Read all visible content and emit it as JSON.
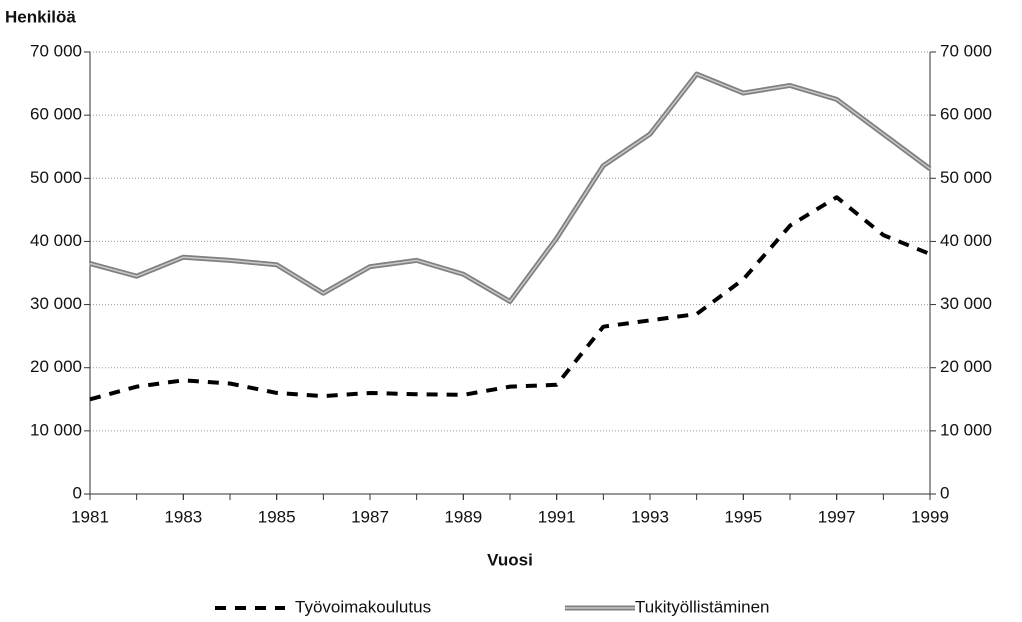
{
  "chart_data": {
    "type": "line",
    "y_label": "Henkilöä",
    "x_label": "Vuosi",
    "x": [
      1981,
      1982,
      1983,
      1984,
      1985,
      1986,
      1987,
      1988,
      1989,
      1990,
      1991,
      1992,
      1993,
      1994,
      1995,
      1996,
      1997,
      1998,
      1999
    ],
    "series": [
      {
        "name": "Työvoimakoulutus",
        "color": "#000000",
        "dash": true,
        "values": [
          15000,
          17000,
          18000,
          17500,
          16000,
          15500,
          16000,
          15800,
          15700,
          17000,
          17300,
          26500,
          27500,
          28500,
          34000,
          42500,
          47000,
          41000,
          38000
        ]
      },
      {
        "name": "Tukityöllistäminen",
        "color": "#808080",
        "dash": false,
        "values": [
          36500,
          34500,
          37500,
          37000,
          36300,
          31800,
          36000,
          37000,
          34800,
          30500,
          40500,
          52000,
          57000,
          66500,
          63500,
          64700,
          62500,
          57000,
          51500
        ]
      }
    ],
    "xlim": [
      1981,
      1999
    ],
    "xticks": [
      1981,
      1983,
      1985,
      1987,
      1989,
      1991,
      1993,
      1995,
      1997,
      1999
    ],
    "ylim": [
      0,
      70000
    ],
    "yticks": [
      0,
      {
        "value": 10000,
        "label": "10 000"
      },
      {
        "value": 20000,
        "label": "20 000"
      },
      {
        "value": 30000,
        "label": "30 000"
      },
      {
        "value": 40000,
        "label": "40 000"
      },
      {
        "value": 50000,
        "label": "50 000"
      },
      {
        "value": 60000,
        "label": "60 000"
      },
      {
        "value": 70000,
        "label": "70 000"
      }
    ],
    "y2lim": [
      0,
      70000
    ],
    "y2ticks": [
      0,
      {
        "value": 10000,
        "label": "10 000"
      },
      {
        "value": 20000,
        "label": "20 000"
      },
      {
        "value": 30000,
        "label": "30 000"
      },
      {
        "value": 40000,
        "label": "40 000"
      },
      {
        "value": 50000,
        "label": "50 000"
      },
      {
        "value": 60000,
        "label": "60 000"
      },
      {
        "value": 70000,
        "label": "70 000"
      }
    ],
    "grid": true,
    "legend": "bottom"
  }
}
